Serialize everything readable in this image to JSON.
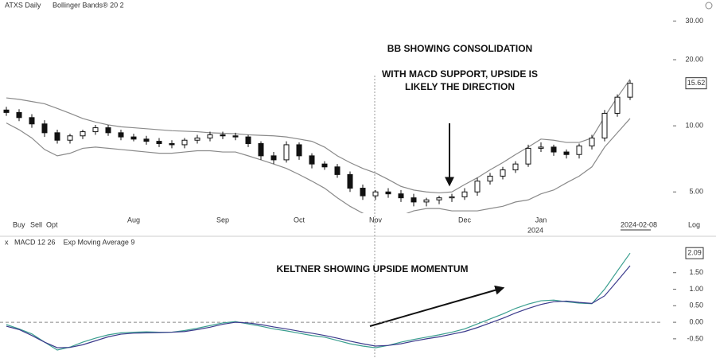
{
  "chart_data": [
    {
      "type": "candlestick",
      "title": "ATXS Daily",
      "subtitle": "Bollinger Bands® 20 2",
      "toolbar": [
        "Buy",
        "Sell",
        "Opt"
      ],
      "scale_label": "Log",
      "last_date": "2024-02-08",
      "year_label": "2024",
      "annotations": [
        "BB SHOWING CONSOLIDATION",
        "WITH MACD SUPPORT, UPSIDE IS",
        "LIKELY THE DIRECTION"
      ],
      "categories": [
        null,
        null,
        null,
        null,
        null,
        null,
        null,
        null,
        null,
        null,
        "Aug",
        null,
        null,
        null,
        null,
        null,
        null,
        "Sep",
        null,
        null,
        null,
        null,
        null,
        "Oct",
        null,
        null,
        null,
        null,
        null,
        "Nov",
        null,
        null,
        null,
        null,
        null,
        null,
        "Dec",
        null,
        null,
        null,
        null,
        null,
        "Jan",
        null,
        null,
        null,
        null,
        null,
        null,
        null
      ],
      "open": [
        11.8,
        11.5,
        10.9,
        10.2,
        9.3,
        8.6,
        9.0,
        9.4,
        9.8,
        9.3,
        8.9,
        8.7,
        8.5,
        8.3,
        8.2,
        8.6,
        8.8,
        9.1,
        9.0,
        8.9,
        8.3,
        7.3,
        7.0,
        8.2,
        7.3,
        6.7,
        6.5,
        6.0,
        5.2,
        4.8,
        5.0,
        4.9,
        4.7,
        4.5,
        4.6,
        4.7,
        4.75,
        5.0,
        5.6,
        5.9,
        6.3,
        6.7,
        7.9,
        8.0,
        7.6,
        7.4,
        8.1,
        8.8,
        11.4,
        13.5
      ],
      "high": [
        12.2,
        11.9,
        11.3,
        10.6,
        9.6,
        9.2,
        9.6,
        10.1,
        10.1,
        9.6,
        9.2,
        9.0,
        8.8,
        8.6,
        8.8,
        9.1,
        9.4,
        9.4,
        9.3,
        9.1,
        8.5,
        7.6,
        8.5,
        8.4,
        7.5,
        6.9,
        6.7,
        6.2,
        5.4,
        5.1,
        5.2,
        5.1,
        4.9,
        4.7,
        4.8,
        4.9,
        5.2,
        5.8,
        6.1,
        6.5,
        6.9,
        8.2,
        8.4,
        8.2,
        7.8,
        8.3,
        9.1,
        11.8,
        13.9,
        16.1
      ],
      "low": [
        11.1,
        10.5,
        9.8,
        8.9,
        8.3,
        8.3,
        8.7,
        9.1,
        9.0,
        8.6,
        8.5,
        8.2,
        8.0,
        7.9,
        7.9,
        8.3,
        8.5,
        8.7,
        8.6,
        8.0,
        7.0,
        6.7,
        6.8,
        7.0,
        6.4,
        6.3,
        5.8,
        5.0,
        4.6,
        4.6,
        4.7,
        4.5,
        4.3,
        4.3,
        4.4,
        4.5,
        4.6,
        4.8,
        5.4,
        5.7,
        6.1,
        6.5,
        7.6,
        7.3,
        7.1,
        7.1,
        7.8,
        8.5,
        11.0,
        13.1
      ],
      "close": [
        11.5,
        10.9,
        10.2,
        9.3,
        8.6,
        9.0,
        9.4,
        9.8,
        9.3,
        8.9,
        8.7,
        8.5,
        8.3,
        8.2,
        8.6,
        8.8,
        9.1,
        9.0,
        8.9,
        8.3,
        7.3,
        7.0,
        8.2,
        7.3,
        6.7,
        6.5,
        6.0,
        5.2,
        4.8,
        5.0,
        4.9,
        4.7,
        4.5,
        4.6,
        4.7,
        4.75,
        5.0,
        5.6,
        5.9,
        6.3,
        6.7,
        7.9,
        8.0,
        7.6,
        7.4,
        8.1,
        8.8,
        11.4,
        13.5,
        15.62
      ],
      "color": "#111111",
      "series": [
        {
          "color": "#8a8a8a",
          "values": [
            13.4,
            13.2,
            12.9,
            12.6,
            12.0,
            11.4,
            10.8,
            10.4,
            10.1,
            9.9,
            9.8,
            9.7,
            9.6,
            9.5,
            9.45,
            9.4,
            9.3,
            9.25,
            9.2,
            9.1,
            9.05,
            9.0,
            8.9,
            8.7,
            8.5,
            8.0,
            7.3,
            6.8,
            6.4,
            6.1,
            5.7,
            5.3,
            5.1,
            5.0,
            4.95,
            5.0,
            5.4,
            5.8,
            6.3,
            6.8,
            7.4,
            8.0,
            8.7,
            8.6,
            8.4,
            8.4,
            8.8,
            11.0,
            13.5,
            16.3
          ]
        },
        {
          "color": "#8a8a8a",
          "values": [
            10.3,
            9.6,
            8.8,
            7.8,
            7.3,
            7.5,
            7.9,
            8.0,
            7.9,
            7.8,
            7.7,
            7.6,
            7.5,
            7.5,
            7.6,
            7.7,
            7.7,
            7.6,
            7.6,
            7.3,
            7.0,
            6.7,
            6.4,
            6.0,
            5.6,
            5.2,
            4.7,
            4.3,
            4.0,
            3.8,
            3.8,
            3.9,
            4.1,
            4.2,
            4.2,
            4.1,
            4.1,
            4.1,
            4.2,
            4.3,
            4.5,
            4.6,
            4.9,
            5.1,
            5.5,
            5.9,
            6.5,
            8.0,
            9.3,
            10.8
          ]
        }
      ],
      "log_scale": true,
      "ylim": [
        4,
        33
      ],
      "yticks": [
        {
          "value": 30,
          "label": "30.00"
        },
        {
          "value": 20,
          "label": "20.00"
        },
        {
          "value": 10,
          "label": "10.00"
        },
        {
          "value": 5,
          "label": "5.00"
        }
      ]
    },
    {
      "type": "line",
      "close_label": "x",
      "annotations": [
        "KELTNER SHOWING UPSIDE MOMENTUM"
      ],
      "series": [
        {
          "name": "MACD 12 26",
          "color": "#3a9e8f",
          "values": [
            -0.07,
            -0.2,
            -0.35,
            -0.6,
            -0.84,
            -0.75,
            -0.6,
            -0.48,
            -0.38,
            -0.32,
            -0.3,
            -0.29,
            -0.3,
            -0.3,
            -0.25,
            -0.18,
            -0.1,
            -0.02,
            0.02,
            -0.05,
            -0.12,
            -0.2,
            -0.26,
            -0.33,
            -0.4,
            -0.45,
            -0.55,
            -0.65,
            -0.72,
            -0.77,
            -0.7,
            -0.6,
            -0.52,
            -0.45,
            -0.38,
            -0.3,
            -0.2,
            -0.05,
            0.1,
            0.25,
            0.42,
            0.55,
            0.65,
            0.67,
            0.62,
            0.58,
            0.56,
            1.0,
            1.55,
            2.09
          ]
        },
        {
          "name": "Exp Moving Average 9",
          "color": "#3b3a8c",
          "values": [
            -0.12,
            -0.22,
            -0.4,
            -0.6,
            -0.77,
            -0.76,
            -0.68,
            -0.56,
            -0.44,
            -0.36,
            -0.33,
            -0.32,
            -0.31,
            -0.3,
            -0.28,
            -0.22,
            -0.15,
            -0.06,
            0.0,
            -0.02,
            -0.07,
            -0.14,
            -0.2,
            -0.27,
            -0.33,
            -0.4,
            -0.48,
            -0.57,
            -0.65,
            -0.72,
            -0.7,
            -0.65,
            -0.57,
            -0.5,
            -0.44,
            -0.36,
            -0.28,
            -0.16,
            -0.02,
            0.12,
            0.28,
            0.42,
            0.54,
            0.62,
            0.64,
            0.6,
            0.57,
            0.8,
            1.25,
            1.71
          ]
        }
      ],
      "zero_line": true,
      "ylim": [
        -0.96,
        2.48
      ],
      "yticks": [
        {
          "value": 1.5,
          "label": "1.50"
        },
        {
          "value": 1,
          "label": "1.00"
        },
        {
          "value": 0.5,
          "label": "0.50"
        },
        {
          "value": 0,
          "label": "0.00"
        },
        {
          "value": -0.5,
          "label": "-0.50"
        }
      ]
    }
  ]
}
